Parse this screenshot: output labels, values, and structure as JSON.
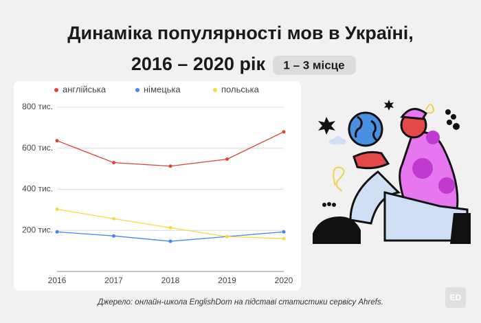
{
  "chart_data": {
    "type": "line",
    "title": [
      "Динаміка популярності мов в Україні,",
      "2016 – 2020 рік"
    ],
    "badge": "1 – 3 місце",
    "categories": [
      "2016",
      "2017",
      "2018",
      "2019",
      "2020"
    ],
    "series": [
      {
        "name": "англійська",
        "color": "#db4437",
        "values": [
          637,
          530,
          513,
          547,
          680
        ]
      },
      {
        "name": "німецька",
        "color": "#4285f4",
        "values": [
          193,
          173,
          147,
          170,
          193
        ]
      },
      {
        "name": "польська",
        "color": "#f7d940",
        "values": [
          303,
          257,
          213,
          170,
          160
        ]
      }
    ],
    "ylim": [
      0,
      800
    ],
    "yticks": [
      {
        "value": 200,
        "label": "200 тис."
      },
      {
        "value": 400,
        "label": "400 тис."
      },
      {
        "value": 600,
        "label": "600 тис."
      },
      {
        "value": 800,
        "label": "800 тис."
      }
    ],
    "grid": true,
    "legend": "top",
    "source": "Джерело: онлайн-школа EnglishDom на підставі статистики сервісу Ahrefs."
  },
  "logo": "ED"
}
